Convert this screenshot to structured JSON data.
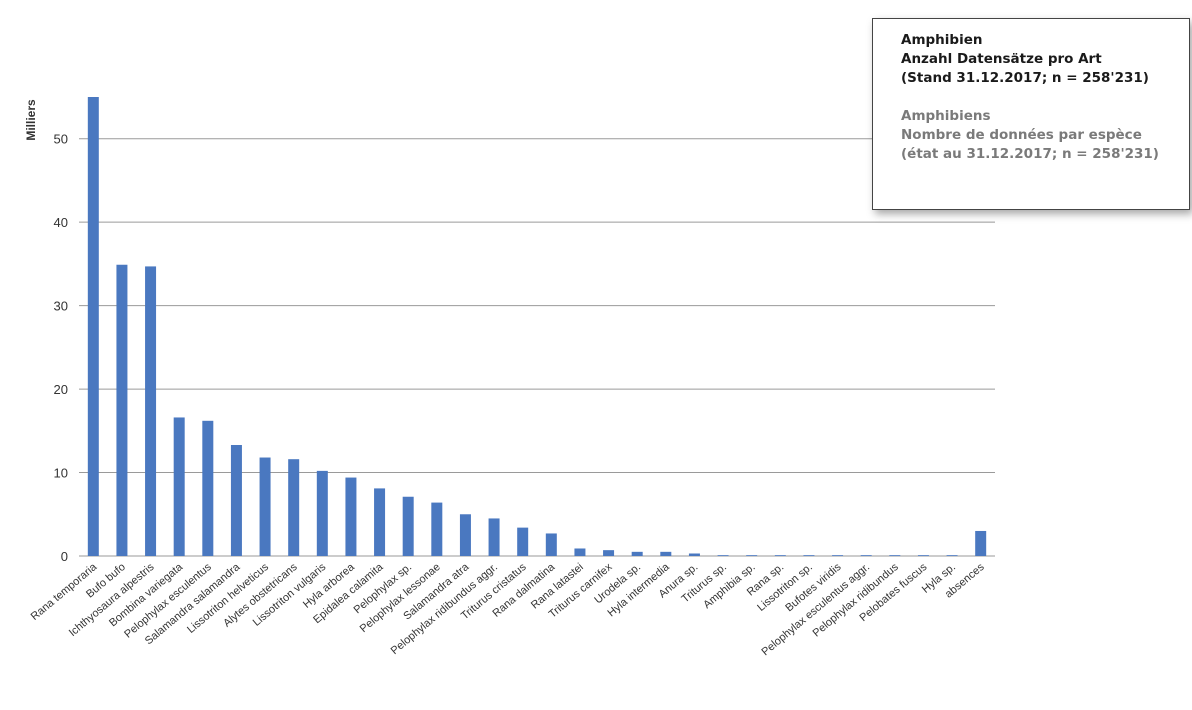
{
  "legend_box": {
    "german": [
      "Amphibien",
      "Anzahl Datensätze pro Art",
      "(Stand 31.12.2017; n = 258'231)"
    ],
    "french": [
      "Amphibiens",
      "Nombre de données par espèce",
      "(état au 31.12.2017; n = 258'231)"
    ]
  },
  "colors": {
    "bar": "#4a78c0",
    "grid": "#9a9a9a",
    "text": "#333333"
  },
  "chart_data": {
    "type": "bar",
    "ylabel": "Milliers",
    "ylim": [
      0,
      55
    ],
    "yticks": [
      0,
      10,
      20,
      30,
      40,
      50
    ],
    "grid": true,
    "categories": [
      "Rana temporaria",
      "Bufo bufo",
      "Ichthyosaura alpestris",
      "Bombina variegata",
      "Pelophylax esculentus",
      "Salamandra salamandra",
      "Lissotriton helveticus",
      "Alytes obstetricans",
      "Lissotriton vulgaris",
      "Hyla arborea",
      "Epidalea calamita",
      "Pelophylax sp.",
      "Pelophylax lessonae",
      "Salamandra atra",
      "Pelophylax ridibundus aggr.",
      "Triturus cristatus",
      "Rana dalmatina",
      "Rana latastei",
      "Triturus carnifex",
      "Urodela sp.",
      "Hyla intermedia",
      "Anura sp.",
      "Triturus sp.",
      "Amphibia sp.",
      "Rana sp.",
      "Lissotriton sp.",
      "Bufotes viridis",
      "Pelophylax esculentus aggr.",
      "Pelophylax ridibundus",
      "Pelobates fuscus",
      "Hyla sp.",
      "absences"
    ],
    "values": [
      55.0,
      34.9,
      34.7,
      16.6,
      16.2,
      13.3,
      11.8,
      11.6,
      10.2,
      9.4,
      8.1,
      7.1,
      6.4,
      5.0,
      4.5,
      3.4,
      2.7,
      0.9,
      0.7,
      0.5,
      0.5,
      0.3,
      0.1,
      0.1,
      0.1,
      0.1,
      0.1,
      0.1,
      0.1,
      0.1,
      0.1,
      3.0
    ]
  }
}
